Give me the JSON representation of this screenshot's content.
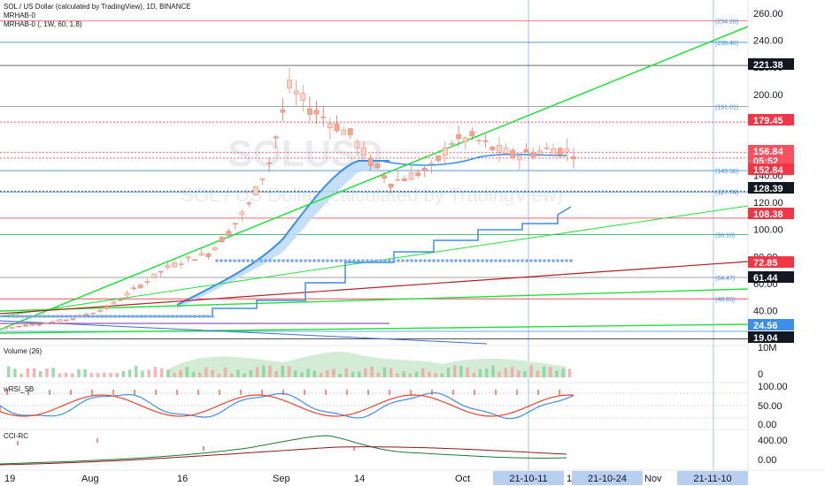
{
  "header": {
    "line1": "SOL / US Dollar (calculated by TradingView), 1D, BINANCE",
    "line2": "MRHAB-0",
    "line3": "MRHAB-0 (, 1W, 60, 1.8)"
  },
  "watermark": {
    "ticker": "SOLUSD",
    "name": "SOL / US Dollar (calculated by TradingView)"
  },
  "panels": {
    "volume": "Volume (26)",
    "wrsi": "wRSI_SB",
    "cci": "CCI-RC"
  },
  "colors": {
    "up": "#f6b3a0",
    "down": "#f6b3a0",
    "trend_green": "#22e03a",
    "trend_red": "#b22222",
    "stair_blue": "#3c8ee6",
    "dots_blue": "#7aa9e8",
    "badge_red": "#f23645",
    "badge_dark": "#131722"
  },
  "chart_data": [
    {
      "type": "line",
      "title": "SOL / US Dollar (calculated by TradingView), 1D, BINANCE",
      "ylim": [
        15,
        265
      ],
      "y_ticks": [
        "260.00",
        "240.00",
        "220.00",
        "200.00",
        "180.00",
        "160.00",
        "140.00",
        "120.00",
        "100.00",
        "80.00",
        "60.00",
        "40.00",
        "20.00"
      ],
      "x_ticks": [
        "19",
        "Aug",
        "16",
        "Sep",
        "14",
        "Oct",
        "18",
        "Nov"
      ],
      "x_highlight_labels": [
        "21-10-11",
        "21-10-24",
        "21-11-10"
      ],
      "price_badges": [
        {
          "label": "221.38",
          "value": 221.38,
          "style": "dark"
        },
        {
          "label": "179.45",
          "value": 179.45,
          "style": "red"
        },
        {
          "label": "156.84",
          "value": 156.84,
          "style": "red-light"
        },
        {
          "label": "05:52",
          "value": 154.5,
          "style": "red-light"
        },
        {
          "label": "152.84",
          "value": 152.84,
          "style": "red"
        },
        {
          "label": "128.39",
          "value": 128.39,
          "style": "dark"
        },
        {
          "label": "108.38",
          "value": 108.38,
          "style": "red"
        },
        {
          "label": "72.85",
          "value": 72.85,
          "style": "red"
        },
        {
          "label": "61.44",
          "value": 61.44,
          "style": "dark"
        },
        {
          "label": "24.56",
          "value": 24.56,
          "style": "blue"
        },
        {
          "label": "19.04",
          "value": 19.04,
          "style": "dark"
        }
      ],
      "level_labels": [
        {
          "label": "(254.28)",
          "value": 254.28
        },
        {
          "label": "(238.46)",
          "value": 238.46
        },
        {
          "label": "(191.01)",
          "value": 191.01
        },
        {
          "label": "(143.56)",
          "value": 143.56
        },
        {
          "label": "(127.74)",
          "value": 127.74
        },
        {
          "label": "(96.10)",
          "value": 96.1
        },
        {
          "label": "(64.47)",
          "value": 64.47
        },
        {
          "label": "(48.65)",
          "value": 48.65
        }
      ],
      "series": [
        {
          "name": "",
          "x": [
            0,
            3,
            6,
            9,
            12,
            15,
            18,
            21,
            24,
            27,
            30,
            33,
            36,
            39,
            42,
            45,
            48,
            51,
            54,
            57,
            60,
            63,
            66,
            69,
            72,
            75,
            78,
            81,
            84
          ],
          "values": [
            27,
            29,
            31,
            33,
            37,
            42,
            52,
            62,
            72,
            78,
            82,
            98,
            118,
            150,
            205,
            190,
            180,
            170,
            150,
            135,
            140,
            145,
            165,
            168,
            160,
            155,
            157,
            160,
            157
          ]
        }
      ]
    },
    {
      "type": "bar",
      "title": "Volume (26)",
      "y_ticks": [
        "10M",
        "0"
      ]
    },
    {
      "type": "line",
      "title": "wRSI_SB",
      "y_ticks": [
        "100.00",
        "50.00",
        "0.00"
      ]
    },
    {
      "type": "line",
      "title": "CCI-RC",
      "y_ticks": [
        "400.00",
        "0.00"
      ]
    }
  ]
}
